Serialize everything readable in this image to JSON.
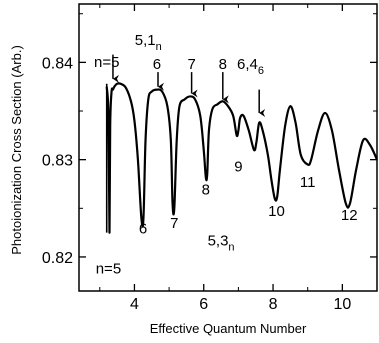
{
  "chart_data": {
    "type": "line",
    "title": "",
    "xlabel": "Effective Quantum Number",
    "ylabel": "Photoionization Cross Section (Arb.)",
    "xlim": [
      2.4,
      11
    ],
    "ylim": [
      0.8165,
      0.846
    ],
    "x_ticks": [
      4,
      6,
      8,
      10
    ],
    "x_tick_labels": [
      "4",
      "6",
      "8",
      "10"
    ],
    "y_ticks": [
      0.82,
      0.83,
      0.84
    ],
    "y_tick_labels": [
      "0.82",
      "0.83",
      "0.84"
    ],
    "grid": false,
    "legend": "none",
    "series": [
      {
        "x": [
          3.2,
          3.25,
          3.28,
          3.3,
          3.34,
          3.38,
          3.42,
          3.5,
          3.6,
          3.75,
          3.9,
          4.0,
          4.1,
          4.2,
          4.26,
          4.32,
          4.4,
          4.5,
          4.65,
          4.8,
          4.95,
          5.05,
          5.1,
          5.15,
          5.22,
          5.3,
          5.45,
          5.6,
          5.75,
          5.9,
          6.0,
          6.06,
          6.1,
          6.15,
          6.25,
          6.4,
          6.55,
          6.7,
          6.85,
          6.95,
          7.0,
          7.05,
          7.15,
          7.3,
          7.45,
          7.52,
          7.6,
          7.7,
          7.85,
          7.95,
          8.05,
          8.12,
          8.2,
          8.35,
          8.5,
          8.65,
          8.8,
          9.0,
          9.1,
          9.3,
          9.5,
          9.7,
          9.9,
          10.1,
          10.22,
          10.4,
          10.6,
          10.8,
          11.0
        ],
        "y": [
          0.8375,
          0.8345,
          0.8225,
          0.8335,
          0.837,
          0.8372,
          0.8375,
          0.8378,
          0.8378,
          0.8374,
          0.836,
          0.834,
          0.83,
          0.824,
          0.824,
          0.832,
          0.8362,
          0.837,
          0.8372,
          0.837,
          0.8355,
          0.832,
          0.8255,
          0.825,
          0.832,
          0.8355,
          0.8362,
          0.8365,
          0.8362,
          0.8345,
          0.831,
          0.8282,
          0.8285,
          0.833,
          0.8352,
          0.8357,
          0.836,
          0.8355,
          0.8345,
          0.8325,
          0.833,
          0.8343,
          0.8345,
          0.833,
          0.831,
          0.8318,
          0.8338,
          0.833,
          0.8305,
          0.828,
          0.826,
          0.8262,
          0.829,
          0.8335,
          0.8355,
          0.8338,
          0.8305,
          0.8295,
          0.83,
          0.833,
          0.8348,
          0.833,
          0.829,
          0.8255,
          0.8255,
          0.829,
          0.832,
          0.8315,
          0.83
        ]
      },
      {
        "x": [
          3.2,
          3.2
        ],
        "y": [
          0.8378,
          0.8225
        ]
      }
    ],
    "annotations": [
      {
        "text": "n=5",
        "x": 3.2,
        "y": 0.8395
      },
      {
        "text": "5,1",
        "sub": "n",
        "x": 4.4,
        "y": 0.8418
      },
      {
        "text": "6",
        "x": 4.65,
        "y": 0.8393
      },
      {
        "text": "7",
        "x": 5.65,
        "y": 0.8393
      },
      {
        "text": "8",
        "x": 6.55,
        "y": 0.8393
      },
      {
        "text": "6,4",
        "sub": "6",
        "x": 7.35,
        "y": 0.8393
      },
      {
        "text": "9",
        "x": 7.0,
        "y": 0.8288
      },
      {
        "text": "11",
        "x": 9.0,
        "y": 0.8272
      },
      {
        "text": "6",
        "x": 4.25,
        "y": 0.8224
      },
      {
        "text": "7",
        "x": 5.15,
        "y": 0.823
      },
      {
        "text": "8",
        "x": 6.06,
        "y": 0.8264
      },
      {
        "text": "10",
        "x": 8.1,
        "y": 0.8242
      },
      {
        "text": "12",
        "x": 10.2,
        "y": 0.8238
      },
      {
        "text": "5,3",
        "sub": "n",
        "x": 6.5,
        "y": 0.8212
      },
      {
        "text": "n=5",
        "x": 3.25,
        "y": 0.8183
      }
    ],
    "arrows": [
      {
        "x": 3.38,
        "y_from": 0.8408,
        "y_to": 0.8383
      },
      {
        "x": 4.68,
        "y_from": 0.839,
        "y_to": 0.8375
      },
      {
        "x": 5.65,
        "y_from": 0.839,
        "y_to": 0.8368
      },
      {
        "x": 6.55,
        "y_from": 0.839,
        "y_to": 0.8362
      },
      {
        "x": 7.6,
        "y_from": 0.8372,
        "y_to": 0.8348
      }
    ]
  }
}
